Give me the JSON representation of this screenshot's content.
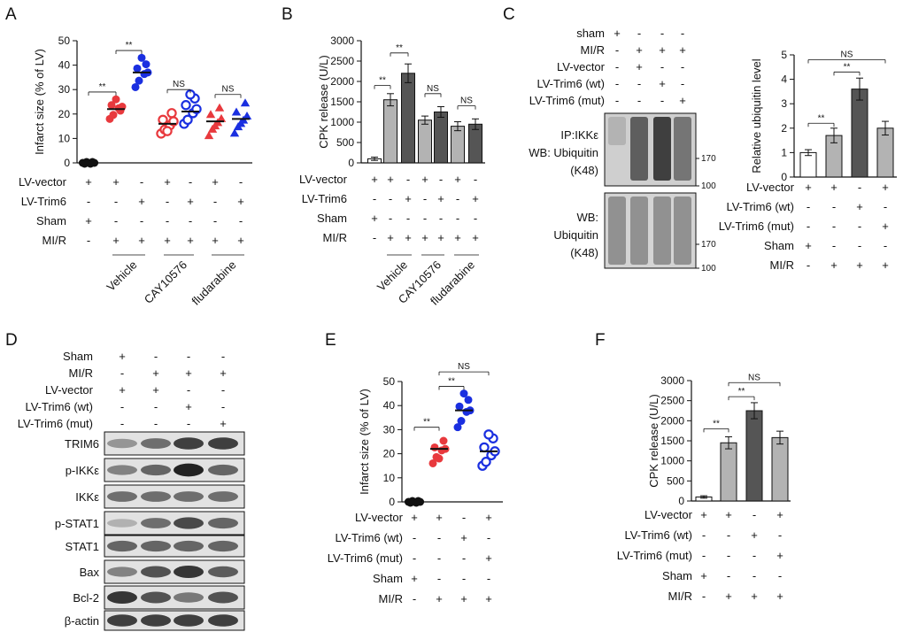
{
  "colors": {
    "black": "#111111",
    "red": "#e8393d",
    "blue": "#1a2fe0",
    "gray_light": "#b3b3b3",
    "gray_dark": "#555555",
    "white": "#ffffff"
  },
  "panels": {
    "A": {
      "label": "A",
      "chart_data": {
        "type": "scatter",
        "ylabel": "Infarct size (% of LV)",
        "ylim": [
          0,
          50
        ],
        "yticks": [
          "0",
          "10",
          "20",
          "30",
          "40",
          "50"
        ],
        "groups": [
          {
            "fill": "#111111",
            "marker": "circle-filled",
            "mean": 0,
            "values": [
              0,
              0,
              0,
              0,
              0,
              0,
              0
            ]
          },
          {
            "fill": "#e8393d",
            "marker": "circle-filled",
            "mean": 22,
            "values": [
              18,
              20,
              22,
              23,
              24,
              21,
              26
            ]
          },
          {
            "fill": "#1a2fe0",
            "marker": "circle-filled",
            "mean": 37,
            "values": [
              31,
              34,
              36,
              37,
              39,
              40,
              43
            ]
          },
          {
            "fill": "#e8393d",
            "marker": "circle-open",
            "mean": 16,
            "values": [
              12,
              14,
              15,
              17,
              18,
              20,
              13
            ]
          },
          {
            "fill": "#1a2fe0",
            "marker": "circle-open",
            "mean": 21,
            "values": [
              16,
              18,
              20,
              22,
              24,
              26,
              28
            ]
          },
          {
            "fill": "#e8393d",
            "marker": "triangle",
            "mean": 17,
            "values": [
              11,
              14,
              16,
              18,
              20,
              22,
              15
            ]
          },
          {
            "fill": "#1a2fe0",
            "marker": "triangle",
            "mean": 18,
            "values": [
              12,
              15,
              17,
              19,
              21,
              24,
              16
            ]
          }
        ],
        "significance": [
          {
            "text": "**",
            "from": 0,
            "to": 1,
            "y": 29
          },
          {
            "text": "**",
            "from": 1,
            "to": 2,
            "y": 46
          },
          {
            "text": "NS",
            "from": 3,
            "to": 4,
            "y": 30
          },
          {
            "text": "NS",
            "from": 5,
            "to": 6,
            "y": 28
          }
        ],
        "conditions": [
          {
            "name": "LV-vector",
            "marks": [
              "+",
              "+",
              "-",
              "+",
              "-",
              "+",
              "-"
            ]
          },
          {
            "name": "LV-Trim6",
            "marks": [
              "-",
              "-",
              "+",
              "-",
              "+",
              "-",
              "+"
            ]
          },
          {
            "name": "Sham",
            "marks": [
              "+",
              "-",
              "-",
              "-",
              "-",
              "-",
              "-"
            ]
          },
          {
            "name": "MI/R",
            "marks": [
              "-",
              "+",
              "+",
              "+",
              "+",
              "+",
              "+"
            ]
          }
        ],
        "treatments": [
          "Vehicle",
          "CAY10576",
          "fludarabine"
        ]
      }
    },
    "B": {
      "label": "B",
      "chart_data": {
        "type": "bar",
        "ylabel": "CPK release (U/L)",
        "ylim": [
          0,
          3000
        ],
        "yticks": [
          "0",
          "500",
          "1000",
          "1500",
          "2000",
          "2500",
          "3000"
        ],
        "values": [
          100,
          1550,
          2200,
          1050,
          1250,
          900,
          950
        ],
        "errors": [
          40,
          150,
          230,
          100,
          130,
          110,
          130
        ],
        "fills": [
          "#ffffff",
          "#b3b3b3",
          "#555555",
          "#b3b3b3",
          "#555555",
          "#b3b3b3",
          "#555555"
        ],
        "significance": [
          {
            "text": "**",
            "from": 0,
            "to": 1,
            "y": 1900
          },
          {
            "text": "**",
            "from": 1,
            "to": 2,
            "y": 2700
          },
          {
            "text": "NS",
            "from": 3,
            "to": 4,
            "y": 1700
          },
          {
            "text": "NS",
            "from": 5,
            "to": 6,
            "y": 1400
          }
        ],
        "conditions": [
          {
            "name": "LV-vector",
            "marks": [
              "+",
              "+",
              "-",
              "+",
              "-",
              "+",
              "-"
            ]
          },
          {
            "name": "LV-Trim6",
            "marks": [
              "-",
              "-",
              "+",
              "-",
              "+",
              "-",
              "+"
            ]
          },
          {
            "name": "Sham",
            "marks": [
              "+",
              "-",
              "-",
              "-",
              "-",
              "-",
              "-"
            ]
          },
          {
            "name": "MI/R",
            "marks": [
              "-",
              "+",
              "+",
              "+",
              "+",
              "+",
              "+"
            ]
          }
        ],
        "treatments": [
          "Vehicle",
          "CAY10576",
          "fludarabine"
        ]
      }
    },
    "C": {
      "label": "C",
      "blot_conditions": [
        {
          "name": "sham",
          "marks": [
            "+",
            "-",
            "-",
            "-"
          ]
        },
        {
          "name": "MI/R",
          "marks": [
            "-",
            "+",
            "+",
            "+"
          ]
        },
        {
          "name": "LV-vector",
          "marks": [
            "-",
            "+",
            "-",
            "-"
          ]
        },
        {
          "name": "LV-Trim6 (wt)",
          "marks": [
            "-",
            "-",
            "+",
            "-"
          ]
        },
        {
          "name": "LV-Trim6 (mut)",
          "marks": [
            "-",
            "-",
            "-",
            "+"
          ]
        }
      ],
      "blot_top": {
        "label_lines": [
          "IP:IKKε",
          "WB: Ubiquitin",
          "(K48)"
        ],
        "markers": [
          "170",
          "100"
        ]
      },
      "blot_bottom": {
        "label_lines": [
          "WB:",
          "Ubiquitin",
          "(K48)"
        ],
        "markers": [
          "170",
          "100"
        ]
      },
      "chart_data": {
        "type": "bar",
        "ylabel": "Relative ubiquitin level",
        "ylim": [
          0,
          5
        ],
        "yticks": [
          "0",
          "1",
          "2",
          "3",
          "4",
          "5"
        ],
        "values": [
          1.0,
          1.7,
          3.6,
          2.0
        ],
        "errors": [
          0.12,
          0.3,
          0.45,
          0.28
        ],
        "fills": [
          "#ffffff",
          "#b3b3b3",
          "#555555",
          "#b3b3b3"
        ],
        "significance": [
          {
            "text": "**",
            "from": 0,
            "to": 1,
            "y": 2.2
          },
          {
            "text": "**",
            "from": 1,
            "to": 2,
            "y": 4.3
          },
          {
            "text": "NS",
            "from": 0,
            "to": 3,
            "y": 4.8
          }
        ],
        "conditions": [
          {
            "name": "LV-vector",
            "marks": [
              "+",
              "+",
              "-",
              "+"
            ]
          },
          {
            "name": "LV-Trim6 (wt)",
            "marks": [
              "-",
              "-",
              "+",
              "-"
            ]
          },
          {
            "name": "LV-Trim6 (mut)",
            "marks": [
              "-",
              "-",
              "-",
              "+"
            ]
          },
          {
            "name": "Sham",
            "marks": [
              "+",
              "-",
              "-",
              "-"
            ]
          },
          {
            "name": "MI/R",
            "marks": [
              "-",
              "+",
              "+",
              "+"
            ]
          }
        ]
      }
    },
    "D": {
      "label": "D",
      "conditions": [
        {
          "name": "Sham",
          "marks": [
            "+",
            "-",
            "-",
            "-"
          ]
        },
        {
          "name": "MI/R",
          "marks": [
            "-",
            "+",
            "+",
            "+"
          ]
        },
        {
          "name": "LV-vector",
          "marks": [
            "+",
            "+",
            "-",
            "-"
          ]
        },
        {
          "name": "LV-Trim6 (wt)",
          "marks": [
            "-",
            "-",
            "+",
            "-"
          ]
        },
        {
          "name": "LV-Trim6 (mut)",
          "marks": [
            "-",
            "-",
            "-",
            "+"
          ]
        }
      ],
      "bands": [
        {
          "name": "TRIM6",
          "intensity": [
            0.35,
            0.55,
            0.8,
            0.8
          ]
        },
        {
          "name": "p-IKKε",
          "intensity": [
            0.45,
            0.6,
            0.95,
            0.6
          ]
        },
        {
          "name": "IKKε",
          "intensity": [
            0.55,
            0.55,
            0.55,
            0.55
          ]
        },
        {
          "name": "p-STAT1",
          "intensity": [
            0.2,
            0.55,
            0.75,
            0.6
          ]
        },
        {
          "name": "STAT1",
          "intensity": [
            0.6,
            0.6,
            0.6,
            0.6
          ]
        },
        {
          "name": "Bax",
          "intensity": [
            0.45,
            0.7,
            0.85,
            0.65
          ]
        },
        {
          "name": "Bcl-2",
          "intensity": [
            0.85,
            0.7,
            0.5,
            0.7
          ]
        },
        {
          "name": "β-actin",
          "intensity": [
            0.8,
            0.8,
            0.8,
            0.8
          ]
        }
      ]
    },
    "E": {
      "label": "E",
      "chart_data": {
        "type": "scatter",
        "ylabel": "Infarct size (% of LV)",
        "ylim": [
          0,
          50
        ],
        "yticks": [
          "0",
          "10",
          "20",
          "30",
          "40",
          "50"
        ],
        "groups": [
          {
            "fill": "#111111",
            "marker": "circle-filled",
            "mean": 0,
            "values": [
              0,
              0,
              0,
              0,
              0,
              0,
              0
            ]
          },
          {
            "fill": "#e8393d",
            "marker": "circle-filled",
            "mean": 22,
            "values": [
              16,
              19,
              21,
              22,
              23,
              25,
              18
            ]
          },
          {
            "fill": "#1a2fe0",
            "marker": "circle-filled",
            "mean": 38,
            "values": [
              31,
              34,
              37,
              38,
              40,
              42,
              45
            ]
          },
          {
            "fill": "#1a2fe0",
            "marker": "circle-open",
            "mean": 21,
            "values": [
              15,
              17,
              19,
              21,
              23,
              26,
              28
            ]
          }
        ],
        "significance": [
          {
            "text": "**",
            "from": 0,
            "to": 1,
            "y": 31
          },
          {
            "text": "**",
            "from": 1,
            "to": 2,
            "y": 48
          },
          {
            "text": "NS",
            "from": 1,
            "to": 3,
            "y": 54
          }
        ],
        "conditions": [
          {
            "name": "LV-vector",
            "marks": [
              "+",
              "+",
              "-",
              "+"
            ]
          },
          {
            "name": "LV-Trim6 (wt)",
            "marks": [
              "-",
              "-",
              "+",
              "-"
            ]
          },
          {
            "name": "LV-Trim6 (mut)",
            "marks": [
              "-",
              "-",
              "-",
              "+"
            ]
          },
          {
            "name": "Sham",
            "marks": [
              "+",
              "-",
              "-",
              "-"
            ]
          },
          {
            "name": "MI/R",
            "marks": [
              "-",
              "+",
              "+",
              "+"
            ]
          }
        ]
      }
    },
    "F": {
      "label": "F",
      "chart_data": {
        "type": "bar",
        "ylabel": "CPK release (U/L)",
        "ylim": [
          0,
          3000
        ],
        "yticks": [
          "0",
          "500",
          "1000",
          "1500",
          "2000",
          "2500",
          "3000"
        ],
        "values": [
          100,
          1450,
          2250,
          1580
        ],
        "errors": [
          30,
          150,
          200,
          160
        ],
        "fills": [
          "#ffffff",
          "#b3b3b3",
          "#555555",
          "#b3b3b3"
        ],
        "significance": [
          {
            "text": "**",
            "from": 0,
            "to": 1,
            "y": 1800
          },
          {
            "text": "**",
            "from": 1,
            "to": 2,
            "y": 2600
          },
          {
            "text": "NS",
            "from": 1,
            "to": 3,
            "y": 2950
          }
        ],
        "conditions": [
          {
            "name": "LV-vector",
            "marks": [
              "+",
              "+",
              "-",
              "+"
            ]
          },
          {
            "name": "LV-Trim6 (wt)",
            "marks": [
              "-",
              "-",
              "+",
              "-"
            ]
          },
          {
            "name": "LV-Trim6 (mut)",
            "marks": [
              "-",
              "-",
              "-",
              "+"
            ]
          },
          {
            "name": "Sham",
            "marks": [
              "+",
              "-",
              "-",
              "-"
            ]
          },
          {
            "name": "MI/R",
            "marks": [
              "-",
              "+",
              "+",
              "+"
            ]
          }
        ]
      }
    }
  }
}
